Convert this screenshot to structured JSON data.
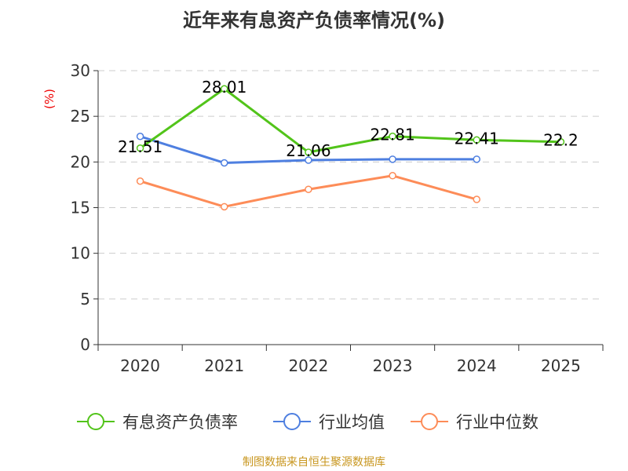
{
  "chart_data": {
    "type": "line",
    "title": "近年来有息资产负债率情况(%)",
    "ylabel": "(%)",
    "categories": [
      "2020",
      "2021",
      "2022",
      "2023",
      "2024",
      "2025"
    ],
    "ylim": [
      0,
      30
    ],
    "yticks": [
      0,
      5,
      10,
      15,
      20,
      25,
      30
    ],
    "grid": true,
    "legend": "bottom",
    "series": [
      {
        "name": "有息资产负债率",
        "color": "#52c41a",
        "values": [
          21.51,
          28.01,
          21.06,
          22.81,
          22.41,
          22.2
        ],
        "labels": [
          "21.51",
          "28.01",
          "21.06",
          "22.81",
          "22.41",
          "22.2"
        ]
      },
      {
        "name": "行业均值",
        "color": "#4e7fe0",
        "values": [
          22.8,
          19.9,
          20.2,
          20.3,
          20.3,
          null
        ]
      },
      {
        "name": "行业中位数",
        "color": "#fd8c58",
        "values": [
          17.9,
          15.1,
          17.0,
          18.5,
          15.9,
          null
        ]
      }
    ]
  },
  "footer": "制图数据来自恒生聚源数据库"
}
